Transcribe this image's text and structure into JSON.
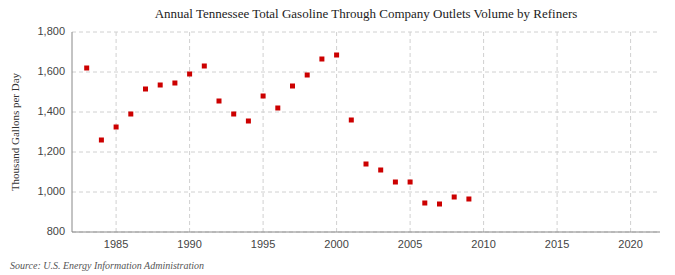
{
  "chart_data": {
    "type": "scatter",
    "title": "Annual Tennessee Total Gasoline Through Company Outlets Volume by Refiners",
    "ylabel": "Thousand Gallons per Day",
    "annotations": [
      "Source: U.S. Energy Information Administration"
    ],
    "x": [
      1983,
      1984,
      1985,
      1986,
      1987,
      1988,
      1989,
      1990,
      1991,
      1992,
      1993,
      1994,
      1995,
      1996,
      1997,
      1998,
      1999,
      2000,
      2001,
      2002,
      2003,
      2004,
      2005,
      2006,
      2007,
      2008,
      2009
    ],
    "values": [
      1620,
      1260,
      1325,
      1390,
      1515,
      1535,
      1545,
      1590,
      1630,
      1455,
      1390,
      1355,
      1480,
      1420,
      1530,
      1585,
      1665,
      1685,
      1360,
      1140,
      1110,
      1050,
      1050,
      945,
      940,
      975,
      965
    ],
    "color": "#cc0000",
    "marker": "square",
    "xlim": [
      1982,
      2022
    ],
    "ylim": [
      800,
      1800
    ],
    "xticks": [
      1985,
      1990,
      1995,
      2000,
      2005,
      2010,
      2015,
      2020
    ],
    "yticks": [
      800,
      {
        "value": 1000,
        "label": "1,000"
      },
      {
        "value": 1200,
        "label": "1,200"
      },
      {
        "value": 1400,
        "label": "1,400"
      },
      {
        "value": 1600,
        "label": "1,600"
      },
      {
        "value": 1800,
        "label": "1,800"
      }
    ],
    "grid": true
  }
}
